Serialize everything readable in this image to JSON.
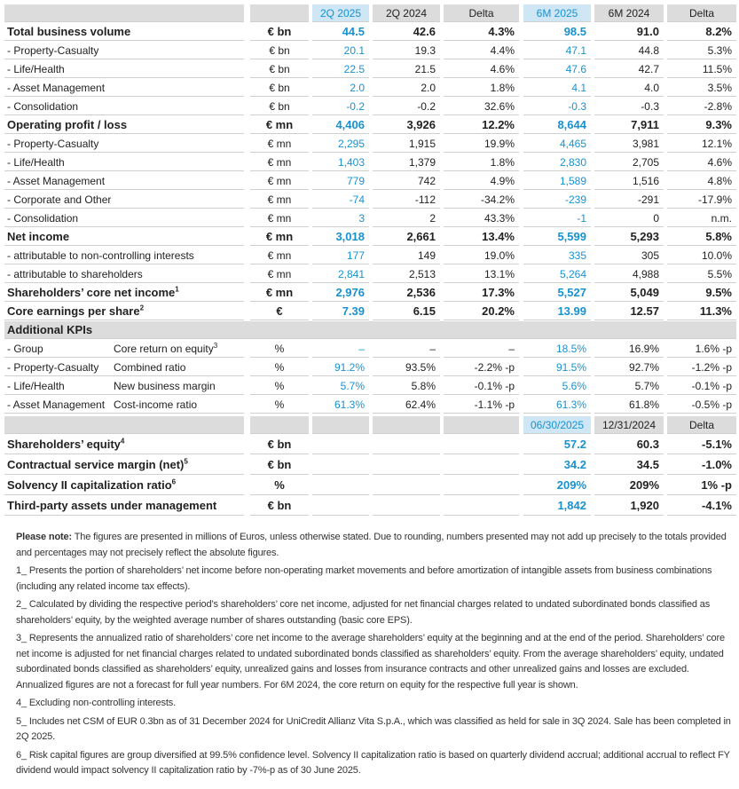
{
  "table": {
    "header": [
      "2Q 2025",
      "2Q 2024",
      "Delta",
      "6M 2025",
      "6M 2024",
      "Delta"
    ],
    "rows": [
      {
        "style": "main",
        "label": "Total business volume",
        "unit": "€ bn",
        "values": [
          "44.5",
          "42.6",
          "4.3%",
          "98.5",
          "91.0",
          "8.2%"
        ]
      },
      {
        "style": "sub",
        "label": "- Property-Casualty",
        "unit": "€ bn",
        "values": [
          "20.1",
          "19.3",
          "4.4%",
          "47.1",
          "44.8",
          "5.3%"
        ]
      },
      {
        "style": "sub",
        "label": "- Life/Health",
        "unit": "€ bn",
        "values": [
          "22.5",
          "21.5",
          "4.6%",
          "47.6",
          "42.7",
          "11.5%"
        ]
      },
      {
        "style": "sub",
        "label": "- Asset Management",
        "unit": "€ bn",
        "values": [
          "2.0",
          "2.0",
          "1.8%",
          "4.1",
          "4.0",
          "3.5%"
        ]
      },
      {
        "style": "sub",
        "label": "- Consolidation",
        "unit": "€ bn",
        "values": [
          "-0.2",
          "-0.2",
          "32.6%",
          "-0.3",
          "-0.3",
          "-2.8%"
        ]
      },
      {
        "style": "main",
        "label": "Operating profit / loss",
        "unit": "€ mn",
        "values": [
          "4,406",
          "3,926",
          "12.2%",
          "8,644",
          "7,911",
          "9.3%"
        ]
      },
      {
        "style": "sub",
        "label": "- Property-Casualty",
        "unit": "€ mn",
        "values": [
          "2,295",
          "1,915",
          "19.9%",
          "4,465",
          "3,981",
          "12.1%"
        ]
      },
      {
        "style": "sub",
        "label": "- Life/Health",
        "unit": "€ mn",
        "values": [
          "1,403",
          "1,379",
          "1.8%",
          "2,830",
          "2,705",
          "4.6%"
        ]
      },
      {
        "style": "sub",
        "label": "- Asset Management",
        "unit": "€ mn",
        "values": [
          "779",
          "742",
          "4.9%",
          "1,589",
          "1,516",
          "4.8%"
        ]
      },
      {
        "style": "sub",
        "label": "- Corporate and Other",
        "unit": "€ mn",
        "values": [
          "-74",
          "-112",
          "-34.2%",
          "-239",
          "-291",
          "-17.9%"
        ]
      },
      {
        "style": "sub",
        "label": "- Consolidation",
        "unit": "€ mn",
        "values": [
          "3",
          "2",
          "43.3%",
          "-1",
          "0",
          "n.m."
        ]
      },
      {
        "style": "main",
        "label": "Net income",
        "unit": "€ mn",
        "values": [
          "3,018",
          "2,661",
          "13.4%",
          "5,599",
          "5,293",
          "5.8%"
        ]
      },
      {
        "style": "sub",
        "label": "- attributable to non-controlling interests",
        "unit": "€ mn",
        "values": [
          "177",
          "149",
          "19.0%",
          "335",
          "305",
          "10.0%"
        ]
      },
      {
        "style": "sub",
        "label": "- attributable to shareholders",
        "unit": "€ mn",
        "values": [
          "2,841",
          "2,513",
          "13.1%",
          "5,264",
          "4,988",
          "5.5%"
        ]
      },
      {
        "style": "main",
        "label": "Shareholders’ core net income",
        "note": "1",
        "unit": "€ mn",
        "values": [
          "2,976",
          "2,536",
          "17.3%",
          "5,527",
          "5,049",
          "9.5%"
        ]
      },
      {
        "style": "main",
        "label": "Core earnings per share",
        "note": "2",
        "unit": "€",
        "values": [
          "7.39",
          "6.15",
          "20.2%",
          "13.99",
          "12.57",
          "11.3%"
        ]
      },
      {
        "style": "section",
        "label": "Additional KPIs"
      },
      {
        "style": "sub",
        "label": "- Group",
        "metric": "Core return on equity",
        "note": "3",
        "unit": "%",
        "values": [
          "–",
          "–",
          "–",
          "18.5%",
          "16.9%",
          "1.6% -p"
        ]
      },
      {
        "style": "sub",
        "label": "- Property-Casualty",
        "metric": "Combined ratio",
        "unit": "%",
        "values": [
          "91.2%",
          "93.5%",
          "-2.2% -p",
          "91.5%",
          "92.7%",
          "-1.2% -p"
        ]
      },
      {
        "style": "sub",
        "label": "- Life/Health",
        "metric": "New business margin",
        "unit": "%",
        "values": [
          "5.7%",
          "5.8%",
          "-0.1% -p",
          "5.6%",
          "5.7%",
          "-0.1% -p"
        ]
      },
      {
        "style": "sub",
        "label": "- Asset Management",
        "metric": "Cost-income ratio",
        "unit": "%",
        "values": [
          "61.3%",
          "62.4%",
          "-1.1% -p",
          "61.3%",
          "61.8%",
          "-0.5% -p"
        ]
      },
      {
        "style": "head",
        "values": [
          "06/30/2025",
          "12/31/2024",
          "Delta"
        ]
      },
      {
        "style": "big",
        "label": "Shareholders’ equity",
        "note": "4",
        "unit": "€ bn",
        "values": [
          "57.2",
          "60.3",
          "-5.1%"
        ]
      },
      {
        "style": "big",
        "label": "Contractual service margin (net)",
        "note": "5",
        "unit": "€ bn",
        "values": [
          "34.2",
          "34.5",
          "-1.0%"
        ]
      },
      {
        "style": "big",
        "label": "Solvency II capitalization ratio",
        "note": "6",
        "unit": "%",
        "values": [
          "209%",
          "209%",
          "1% -p"
        ]
      },
      {
        "style": "big",
        "label": "Third-party assets under management",
        "unit": "€ bn",
        "values": [
          "1,842",
          "1,920",
          "-4.1%"
        ]
      }
    ]
  },
  "notes": {
    "please_note": {
      "label": "Please note:",
      "text": "The figures are presented in millions of Euros, unless otherwise stated. Due to rounding, numbers presented may not add up precisely to the totals provided and percentages may not precisely reflect the absolute figures."
    },
    "footnotes": [
      {
        "marker": "1_",
        "text": "Presents the portion of shareholders’ net income before non-operating market movements and before amortization of intangible assets from business combinations (including any related income tax effects)."
      },
      {
        "marker": "2_",
        "text": "Calculated by dividing the respective period’s shareholders’ core net income, adjusted for net financial charges related to undated subordinated bonds classified as shareholders’ equity, by the weighted average number of shares outstanding (basic core EPS)."
      },
      {
        "marker": "3_",
        "text": "Represents the annualized ratio of shareholders’ core net income to the average shareholders’ equity at the beginning and at the end of the period. Shareholders’ core net income is adjusted for net financial charges related to undated subordinated bonds classified as shareholders’ equity. From the average shareholders’ equity, undated subordinated bonds classified as shareholders’ equity, unrealized gains and losses from insurance contracts and other unrealized gains and losses are excluded. Annualized figures are not a forecast for full year numbers. For 6M 2024, the core return on equity for the respective full year is shown."
      },
      {
        "marker": "4_",
        "text": "Excluding non-controlling interests."
      },
      {
        "marker": "5_",
        "text": "Includes net CSM of EUR 0.3bn as of 31 December 2024 for UniCredit Allianz Vita S.p.A., which was classified as held for sale in 3Q 2024. Sale has been completed in 2Q 2025."
      },
      {
        "marker": "6_",
        "text": "Risk capital figures are group diversified at 99.5% confidence level. Solvency II capitalization ratio is based on quarterly dividend accrual; additional accrual to reflect FY dividend would impact solvency II capitalization ratio by -7%-p as of 30 June 2025."
      }
    ]
  }
}
